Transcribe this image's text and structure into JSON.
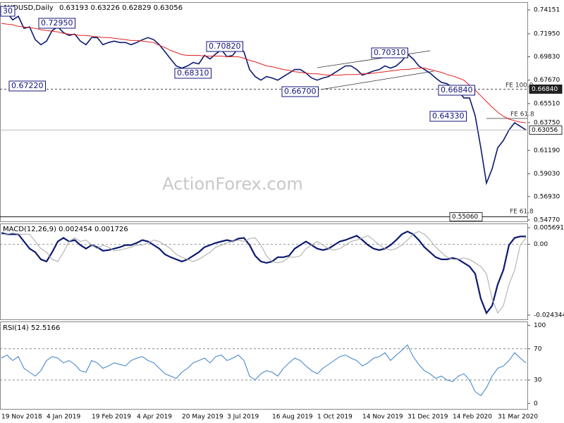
{
  "chart_data": [
    {
      "type": "line",
      "title": "AUDUSD,Daily",
      "subtitle": "0.63193 0.63226 0.62829 0.63056",
      "watermark": "ActionForex.com",
      "ylim": [
        0.5464,
        0.7487
      ],
      "yticks": [
        0.74151,
        {
          "value": 0.7195,
          "label": "0.71950"
        },
        {
          "value": 0.6983,
          "label": "0.69830"
        },
        {
          "value": 0.6767,
          "label": "0.67670"
        },
        {
          "value": 0.6551,
          "label": "0.65510"
        },
        {
          "value": 0.6375,
          "label": "0.63750"
        },
        {
          "value": 0.6119,
          "label": "0.61190"
        },
        {
          "value": 0.5903,
          "label": "0.59030"
        },
        {
          "value": 0.5693,
          "label": "0.56930"
        },
        {
          "value": 0.5477,
          "label": "0.54770"
        }
      ],
      "grid": false,
      "series": [
        {
          "color": "#0b1a70",
          "values": [
            0.7356,
            0.7389,
            0.7323,
            0.7356,
            0.7245,
            0.7258,
            0.714,
            0.7094,
            0.7127,
            0.7225,
            0.7258,
            0.7206,
            0.7179,
            0.7192,
            0.7127,
            0.7094,
            0.716,
            0.716,
            0.7094,
            0.7114,
            0.7127,
            0.7114,
            0.7114,
            0.7094,
            0.7114,
            0.714,
            0.716,
            0.714,
            0.7094,
            0.7029,
            0.6963,
            0.6898,
            0.6878,
            0.6898,
            0.693,
            0.6917,
            0.6996,
            0.6963,
            0.7009,
            0.7048,
            0.6983,
            0.6996,
            0.7061,
            0.7029,
            0.6865,
            0.68,
            0.6767,
            0.68,
            0.6787,
            0.6767,
            0.68,
            0.6832,
            0.6865,
            0.6865,
            0.6832,
            0.6787,
            0.6767,
            0.6787,
            0.68,
            0.6832,
            0.6865,
            0.6898,
            0.6898,
            0.6865,
            0.6813,
            0.6832,
            0.6852,
            0.6865,
            0.6898,
            0.6878,
            0.6898,
            0.6944,
            0.7009,
            0.6963,
            0.6898,
            0.6865,
            0.6832,
            0.6787,
            0.6747,
            0.6734,
            0.6701,
            0.6668,
            0.6603,
            0.6603,
            0.6439,
            0.6144,
            0.5817,
            0.5948,
            0.6144,
            0.621,
            0.6308,
            0.6374,
            0.6341,
            0.6308
          ]
        },
        {
          "color": "#e02020",
          "values": [
            0.7291,
            0.7284,
            0.7278,
            0.7264,
            0.7258,
            0.7251,
            0.7245,
            0.7232,
            0.7225,
            0.7219,
            0.7212,
            0.7199,
            0.7192,
            0.7186,
            0.7179,
            0.7179,
            0.7173,
            0.7166,
            0.716,
            0.716,
            0.7153,
            0.7147,
            0.714,
            0.7133,
            0.7133,
            0.7127,
            0.712,
            0.7114,
            0.7088,
            0.7068,
            0.7042,
            0.7022,
            0.7002,
            0.6996,
            0.6996,
            0.6996,
            0.6989,
            0.6989,
            0.6989,
            0.6989,
            0.6983,
            0.6983,
            0.6983,
            0.697,
            0.695,
            0.6937,
            0.6917,
            0.6898,
            0.6891,
            0.6878,
            0.6865,
            0.6858,
            0.6845,
            0.6839,
            0.6832,
            0.6826,
            0.6826,
            0.6819,
            0.6813,
            0.6813,
            0.6813,
            0.6819,
            0.6819,
            0.6819,
            0.6826,
            0.6826,
            0.6832,
            0.6839,
            0.6845,
            0.6852,
            0.6858,
            0.6865,
            0.6865,
            0.6872,
            0.6878,
            0.6878,
            0.6865,
            0.6852,
            0.6839,
            0.6819,
            0.6806,
            0.6787,
            0.6767,
            0.6721,
            0.6675,
            0.6623,
            0.657,
            0.6518,
            0.6472,
            0.6433,
            0.6407,
            0.6393,
            0.638,
            0.6374
          ]
        }
      ],
      "levels": [
        {
          "value": 0.6684,
          "label": "0.66840"
        },
        {
          "value": 0.63056,
          "label": "0.63056"
        },
        {
          "value": 0.5506,
          "label": "0.55060"
        }
      ],
      "annotations": [
        "30",
        "0.72950",
        "0.67220",
        "0.68310",
        "0.70820",
        "0.66700",
        "0.70310",
        "0.66840",
        "0.64330",
        "FE 100.0",
        "FE 61.8",
        "FE 61.8"
      ]
    },
    {
      "type": "line",
      "title": "MACD(12,26,9) 0.002454 0.001726",
      "ylim": [
        -0.02582,
        0.00717
      ],
      "yticks": [
        0.005691,
        {
          "value": 0,
          "label": "0.00"
        },
        -0.024344
      ],
      "grid": true,
      "series": [
        {
          "color": "#0b1a70",
          "values": [
            0.00394,
            0.00345,
            0.00345,
            0.00345,
            0.00098,
            -0.00148,
            -0.00271,
            -0.00517,
            -0.00591,
            -0.00271,
            0.00098,
            0.00222,
            0.00098,
            0.00148,
            -0.00025,
            -0.00148,
            -0.00025,
            -0.00098,
            -0.00222,
            -0.00197,
            -0.00148,
            -0.00098,
            -0.00025,
            -0.00025,
            0.00049,
            0.00148,
            0.00098,
            -0.00025,
            -0.00148,
            -0.00345,
            -0.00443,
            -0.00517,
            -0.00591,
            -0.00517,
            -0.00394,
            -0.00271,
            -0.00098,
            -0.00025,
            0.00049,
            0.00098,
            0.00148,
            0.00098,
            0.00197,
            0.00222,
            -0.00025,
            -0.00394,
            -0.00591,
            -0.0064,
            -0.00591,
            -0.00443,
            -0.00443,
            -0.00394,
            -0.00148,
            -0.00025,
            0.00098,
            -0.00025,
            -0.00148,
            -0.00197,
            -0.00148,
            -0.00025,
            0.00098,
            0.00148,
            0.00222,
            0.00295,
            0.00148,
            -0.00025,
            -0.00148,
            -0.00197,
            -0.00148,
            -0.00025,
            0.00148,
            0.00345,
            0.00443,
            0.00345,
            0.00148,
            -0.00098,
            -0.00271,
            -0.00443,
            -0.00517,
            -0.00517,
            -0.00468,
            -0.00517,
            -0.0064,
            -0.00763,
            -0.01009,
            -0.01871,
            -0.02363,
            -0.02117,
            -0.01379,
            -0.00886,
            -0.00025,
            0.00222,
            0.00271,
            0.00271
          ]
        },
        {
          "color": "#a8a8a8",
          "values": [
            0.00345,
            0.00345,
            0.00394,
            0.00345,
            0.00345,
            0.00345,
            0.00098,
            -0.00148,
            -0.00271,
            -0.00517,
            -0.00591,
            -0.00271,
            0.00098,
            0.00222,
            0.00098,
            0.00148,
            -0.00025,
            -0.00148,
            -0.00025,
            -0.00098,
            -0.00222,
            -0.00197,
            -0.00148,
            -0.00098,
            -0.00025,
            -0.00025,
            0.00049,
            0.00148,
            0.00098,
            -0.00025,
            -0.00148,
            -0.00345,
            -0.00443,
            -0.00517,
            -0.00591,
            -0.00517,
            -0.00394,
            -0.00271,
            -0.00098,
            -0.00025,
            0.00049,
            0.00098,
            0.00148,
            0.00098,
            0.00197,
            0.00222,
            -0.00025,
            -0.00394,
            -0.00591,
            -0.0064,
            -0.00591,
            -0.00443,
            -0.00443,
            -0.00394,
            -0.00148,
            -0.00025,
            0.00098,
            -0.00025,
            -0.00148,
            -0.00197,
            -0.00148,
            -0.00025,
            0.00098,
            0.00148,
            0.00222,
            0.00295,
            0.00148,
            -0.00025,
            -0.00148,
            -0.00197,
            -0.00148,
            -0.00025,
            0.00148,
            0.00345,
            0.00443,
            0.00345,
            0.00148,
            -0.00098,
            -0.00271,
            -0.00443,
            -0.00517,
            -0.00517,
            -0.00468,
            -0.00517,
            -0.0064,
            -0.00763,
            -0.01009,
            -0.01871,
            -0.02363,
            -0.02117,
            -0.01379,
            -0.00886,
            -0.00025,
            0.00222
          ]
        }
      ]
    },
    {
      "type": "line",
      "title": "RSI(14) 52.5166",
      "ylim": [
        -7,
        105
      ],
      "yticks": [
        0,
        30,
        70,
        100
      ],
      "grid": true,
      "categories": [
        "19 Nov 2018",
        null,
        null,
        null,
        null,
        null,
        null,
        null,
        "4 Jan 2019",
        null,
        null,
        null,
        null,
        null,
        null,
        null,
        "19 Feb 2019",
        null,
        null,
        null,
        null,
        null,
        null,
        null,
        "4 Apr 2019",
        null,
        null,
        null,
        null,
        null,
        null,
        null,
        "20 May 2019",
        null,
        null,
        null,
        null,
        null,
        null,
        null,
        "3 Jul 2019",
        null,
        null,
        null,
        null,
        null,
        null,
        null,
        "16 Aug 2019",
        null,
        null,
        null,
        null,
        null,
        null,
        null,
        "1 Oct 2019",
        null,
        null,
        null,
        null,
        null,
        null,
        null,
        "14 Nov 2019",
        null,
        null,
        null,
        null,
        null,
        null,
        null,
        "31 Dec 2019",
        null,
        null,
        null,
        null,
        null,
        null,
        null,
        "14 Feb 2020",
        null,
        null,
        null,
        null,
        null,
        null,
        null,
        "31 Mar 2020",
        null,
        null,
        null,
        null,
        null
      ],
      "series": [
        {
          "color": "#3a7fc8",
          "values": [
            58,
            62,
            55,
            60,
            45,
            40,
            35,
            42,
            55,
            60,
            58,
            52,
            55,
            50,
            42,
            40,
            55,
            52,
            45,
            48,
            52,
            50,
            48,
            55,
            58,
            60,
            55,
            52,
            45,
            38,
            35,
            32,
            40,
            45,
            52,
            55,
            58,
            52,
            60,
            62,
            55,
            58,
            62,
            55,
            35,
            30,
            38,
            42,
            40,
            35,
            45,
            52,
            58,
            55,
            48,
            42,
            38,
            45,
            50,
            55,
            60,
            62,
            58,
            55,
            48,
            52,
            58,
            60,
            65,
            55,
            62,
            68,
            75,
            60,
            50,
            42,
            38,
            32,
            35,
            30,
            28,
            35,
            38,
            30,
            15,
            10,
            20,
            35,
            45,
            48,
            55,
            65,
            58,
            52
          ]
        }
      ]
    }
  ]
}
